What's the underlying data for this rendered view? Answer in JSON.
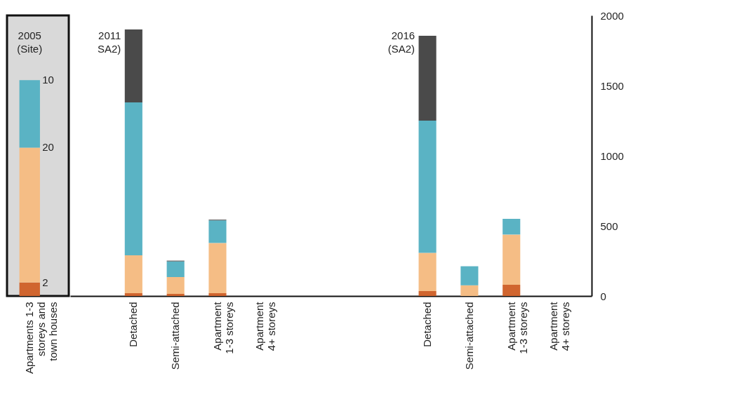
{
  "chart_data": [
    {
      "type": "bar",
      "stacked": true,
      "categories": [
        "Apartments 1-3 storeys and town houses"
      ],
      "series": [
        {
          "color": "#d0652f",
          "values": [
            2
          ]
        },
        {
          "color": "#f5bd85",
          "values": [
            20
          ]
        },
        {
          "color": "#5ab3c4",
          "values": [
            10
          ]
        }
      ],
      "data_labels": true,
      "annotations": [
        "2005 (Site)"
      ]
    },
    {
      "type": "bar",
      "stacked": true,
      "categories": [
        "Detached",
        "Semi-attached",
        "Apartment 1-3 storeys",
        "Apartment 4+ storeys",
        null,
        null,
        null,
        "Detached",
        "Semi-attached",
        "Apartment 1-3 storeys",
        "Apartment 4+ storeys"
      ],
      "series": [
        {
          "color": "#d0652f",
          "values": [
            20,
            15,
            20,
            0,
            null,
            null,
            null,
            35,
            0,
            80,
            0
          ]
        },
        {
          "color": "#f5bd85",
          "values": [
            270,
            120,
            358,
            0,
            null,
            null,
            null,
            272,
            76,
            358,
            0
          ]
        },
        {
          "color": "#5ab3c4",
          "values": [
            1090,
            112,
            161,
            0,
            null,
            null,
            null,
            943,
            136,
            112,
            0
          ]
        },
        {
          "color": "#4a4a4a",
          "values": [
            520,
            5,
            5,
            0,
            null,
            null,
            null,
            605,
            0,
            0,
            0
          ]
        }
      ],
      "ylim": [
        0,
        2000
      ],
      "yticks": [
        0,
        500,
        1000,
        1500,
        2000
      ],
      "annotations": [
        "2011 SA2)",
        "2016 (SA2)"
      ]
    }
  ]
}
